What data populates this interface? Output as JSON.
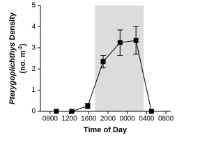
{
  "chart_data": {
    "type": "line",
    "xlabel": "Time of Day",
    "ylabel_parts": [
      "Pterygoplichthys",
      "Density"
    ],
    "ylabel_unit_parts": [
      "(no. m",
      "-2",
      ")"
    ],
    "x": [
      9.3,
      12.5,
      15.8,
      19,
      22.5,
      25.8,
      29
    ],
    "series": [
      {
        "color": "#000000",
        "values": [
          0,
          0,
          0.25,
          2.35,
          3.25,
          3.35,
          0
        ],
        "errors": [
          0,
          0,
          0.12,
          0.3,
          0.6,
          0.65,
          0
        ]
      }
    ],
    "shaded_region": [
      17.3,
      27.4
    ],
    "shade_color": "#dcdcdc",
    "xlim": [
      6,
      33
    ],
    "xticks": [
      {
        "value": 8,
        "label": "0800"
      },
      {
        "value": 12,
        "label": "1200"
      },
      {
        "value": 16,
        "label": "1600"
      },
      {
        "value": 20,
        "label": "2000"
      },
      {
        "value": 24,
        "label": "0000"
      },
      {
        "value": 28,
        "label": "0400"
      },
      {
        "value": 32,
        "label": "0800"
      }
    ],
    "ylim": [
      0,
      5
    ],
    "yticks": [
      0,
      1,
      2,
      3,
      4,
      5
    ]
  }
}
